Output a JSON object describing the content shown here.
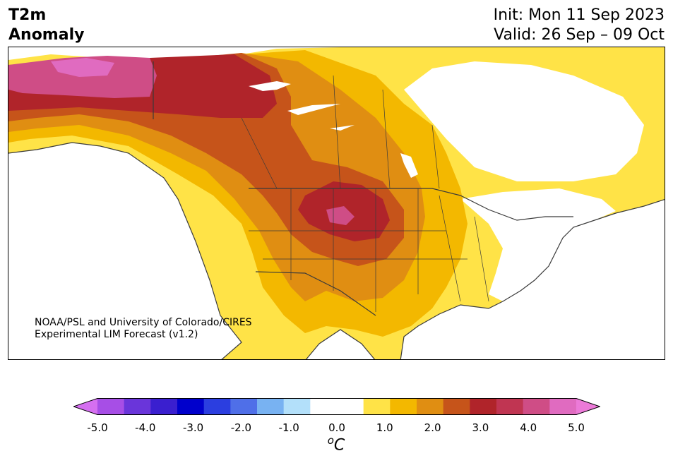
{
  "title": {
    "line1": "T2m",
    "line2": "Anomaly"
  },
  "info": {
    "init": "Init: Mon 11 Sep 2023",
    "valid": "Valid: 26 Sep – 09 Oct"
  },
  "credit": {
    "line1": "NOAA/PSL and University of Colorado/CIRES",
    "line2": "Experimental LIM Forecast (v1.2)"
  },
  "colorbar": {
    "unit_base": "C",
    "unit_sup": "o",
    "ticks": [
      "-5.0",
      "-4.0",
      "-3.0",
      "-2.0",
      "-1.0",
      "0.0",
      "1.0",
      "2.0",
      "3.0",
      "4.0",
      "5.0"
    ],
    "min": -5.0,
    "max": 5.0,
    "low_extend_color": "#d56ff0",
    "high_extend_color": "#ec7ad8",
    "colors": [
      "#a74ee6",
      "#6a35da",
      "#3a1fcf",
      "#0000cc",
      "#2b3ee0",
      "#4f6fe8",
      "#78b2f2",
      "#b3e0fa",
      "#ffffff",
      "#ffffff",
      "#ffe347",
      "#f3b800",
      "#e08e12",
      "#c6541a",
      "#b0242a",
      "#c03552",
      "#cf4d86",
      "#e06bc0"
    ]
  }
}
